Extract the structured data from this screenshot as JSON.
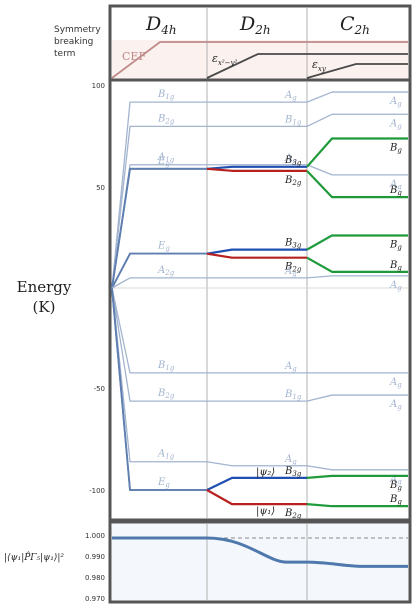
{
  "header": {
    "columns": [
      "D",
      "D",
      "C"
    ],
    "column_subscripts": [
      "4h",
      "2h",
      "2h"
    ]
  },
  "top_panel": {
    "label_lines": [
      "Symmetry",
      "breaking",
      "term"
    ],
    "cef_label": "CEF",
    "eps1_label": "ε",
    "eps1_sub": "x²−y²",
    "eps2_label": "ε",
    "eps2_sub": "xy",
    "colors": {
      "cef": "#c08a8a",
      "eps": "#4a4a4a",
      "cef_fill": "#fbf1ef"
    }
  },
  "main_axis": {
    "ylabel_line1": "Energy",
    "ylabel_line2": "(K)",
    "ticks": [
      "100",
      "50",
      "-50",
      "-100"
    ],
    "tick_values": [
      100,
      50,
      -50,
      -100
    ],
    "ylim": [
      -110,
      115
    ]
  },
  "bottom_axis": {
    "ylabel": "|⟨ψ₁|P̂Γ₅|ψ₁⟩|²",
    "ticks": [
      "1.000",
      "0.990",
      "0.980",
      "0.970"
    ],
    "tick_values": [
      1.0,
      0.99,
      0.98,
      0.97
    ],
    "ylim": [
      0.968,
      1.004
    ]
  },
  "colors": {
    "faint_line": "#a3b4cf",
    "strong_line": "#5f7fb0",
    "blue_split": "#1f4fb0",
    "red_split": "#b82020",
    "green_split": "#1e9a3a",
    "frame": "#555555",
    "divider": "#b0b0b0"
  },
  "chart_data": {
    "type": "line",
    "x_regions": [
      "D4h",
      "D2h",
      "C2h"
    ],
    "levels": [
      {
        "label_d4h": "B1g",
        "energy_d4h": 92,
        "label_d2h": "Ag",
        "energy_d2h": 92,
        "label_c2h": "Ag",
        "energy_c2h": 97
      },
      {
        "label_d4h": "B2g",
        "energy_d4h": 80,
        "label_d2h": "B1g",
        "energy_d2h": 80,
        "label_c2h": "Ag",
        "energy_c2h": 86
      },
      {
        "label_d4h": "A1g",
        "energy_d4h": 61,
        "label_d2h": "Ag",
        "energy_d2h": 61,
        "label_c2h": "Ag",
        "energy_c2h": 56
      },
      {
        "label_d4h": "Eg",
        "energy_d4h": 59,
        "label_d2h": "B3g",
        "energy_d2h": 60,
        "label_c2h": "Bg",
        "energy_c2h": 74
      },
      {
        "label_d4h": "Eg",
        "energy_d4h": 59,
        "label_d2h": "B2g",
        "energy_d2h": 58,
        "label_c2h": "Bg",
        "energy_c2h": 45
      },
      {
        "label_d4h": "Eg",
        "energy_d4h": 17,
        "label_d2h": "B3g",
        "energy_d2h": 19,
        "label_c2h": "Bg",
        "energy_c2h": 26
      },
      {
        "label_d4h": "Eg",
        "energy_d4h": 17,
        "label_d2h": "B2g",
        "energy_d2h": 15,
        "label_c2h": "Bg",
        "energy_c2h": 8
      },
      {
        "label_d4h": "A2g",
        "energy_d4h": 5,
        "label_d2h": "Ag",
        "energy_d2h": 5,
        "label_c2h": "Ag",
        "energy_c2h": 6
      },
      {
        "label_d4h": "B1g",
        "energy_d4h": -42,
        "label_d2h": "Ag",
        "energy_d2h": -42,
        "label_c2h": "Ag",
        "energy_c2h": -42
      },
      {
        "label_d4h": "B2g",
        "energy_d4h": -56,
        "label_d2h": "B1g",
        "energy_d2h": -56,
        "label_c2h": "Ag",
        "energy_c2h": -53
      },
      {
        "label_d4h": "A1g",
        "energy_d4h": -86,
        "label_d2h": "Ag",
        "energy_d2h": -88,
        "label_c2h": "Ag",
        "energy_c2h": -90
      },
      {
        "label_d4h": "Eg",
        "energy_d4h": -100,
        "label_d2h": "B3g",
        "energy_d2h": -94,
        "label_c2h": "Bg",
        "energy_c2h": -93
      },
      {
        "label_d4h": "Eg",
        "energy_d4h": -100,
        "label_d2h": "B2g",
        "energy_d2h": -107,
        "label_c2h": "Bg",
        "energy_c2h": -108
      }
    ],
    "state_labels": [
      "|ψ₂⟩",
      "|ψ₁⟩"
    ],
    "overlap": {
      "x_regions": [
        "D4h",
        "D2h",
        "C2h"
      ],
      "values": [
        1.0,
        0.9885,
        0.9865
      ],
      "reference": 1.0
    }
  }
}
